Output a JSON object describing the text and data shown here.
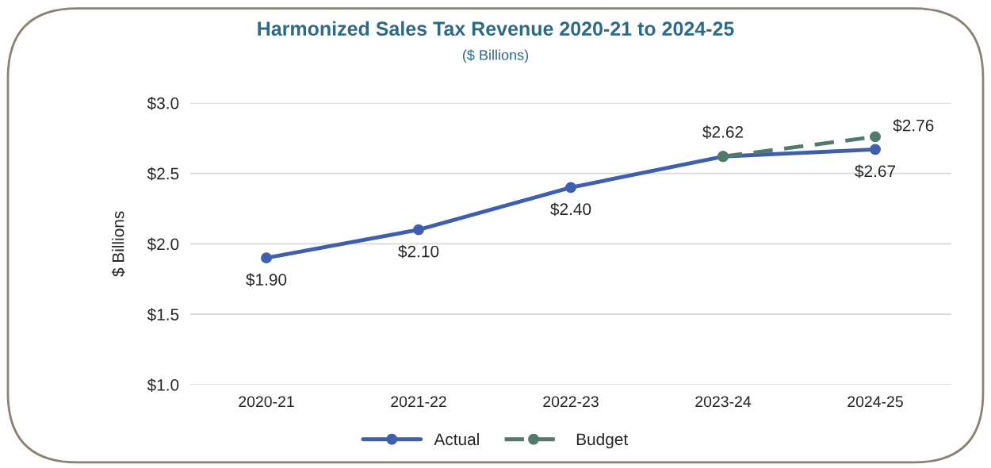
{
  "chart_data": {
    "type": "line",
    "title": "Harmonized Sales Tax Revenue 2020-21 to 2024-25",
    "subtitle": "($ Billions)",
    "ylabel": "$ Billions",
    "categories": [
      "2020-21",
      "2021-22",
      "2022-23",
      "2023-24",
      "2024-25"
    ],
    "series": [
      {
        "name": "Actual",
        "color": "#3f5fae",
        "line_style": "solid",
        "values": [
          1.9,
          2.1,
          2.4,
          2.62,
          2.67
        ],
        "value_labels": [
          "$1.90",
          "$2.10",
          "$2.40",
          "$2.62",
          "$2.67"
        ]
      },
      {
        "name": "Budget",
        "color": "#517a6b",
        "line_style": "dashed",
        "values": [
          null,
          null,
          null,
          2.62,
          2.76
        ],
        "value_labels": [
          null,
          null,
          null,
          null,
          "$2.76"
        ]
      }
    ],
    "ylim": [
      1.0,
      3.0
    ],
    "yticks": [
      {
        "value": 1.0,
        "label": "$1.0"
      },
      {
        "value": 1.5,
        "label": "$1.5"
      },
      {
        "value": 2.0,
        "label": "$2.0"
      },
      {
        "value": 2.5,
        "label": "$2.5"
      },
      {
        "value": 3.0,
        "label": "$3.0"
      }
    ],
    "grid": "y",
    "legend": "bottom",
    "marker": "circle"
  }
}
